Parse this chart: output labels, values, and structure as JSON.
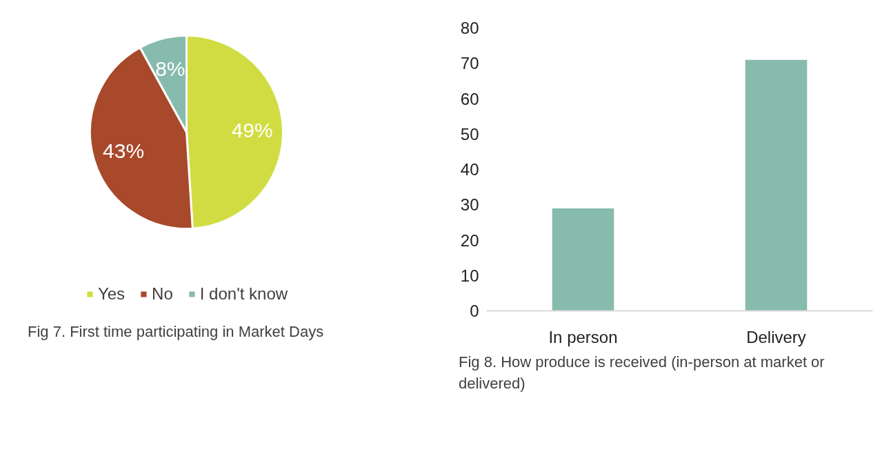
{
  "chart_data": [
    {
      "type": "pie",
      "categories": [
        "Yes",
        "No",
        "I don't know"
      ],
      "values": [
        49,
        43,
        8
      ],
      "colors": [
        "#d1dc42",
        "#a8492b",
        "#86bbad"
      ],
      "value_labels": [
        "49%",
        "43%",
        "8%"
      ],
      "legend": "bottom",
      "annotations": [
        "Fig 7.  First time participating in Market Days"
      ]
    },
    {
      "type": "bar",
      "categories": [
        "In person",
        "Delivery"
      ],
      "values": [
        29,
        71
      ],
      "color": "#86bbad",
      "ylim": [
        0,
        80
      ],
      "yticks": [
        0,
        10,
        20,
        30,
        40,
        50,
        60,
        70,
        80
      ],
      "grid": false,
      "annotations": [
        "Fig 8. How produce is received (in-person at market or delivered)"
      ]
    }
  ]
}
